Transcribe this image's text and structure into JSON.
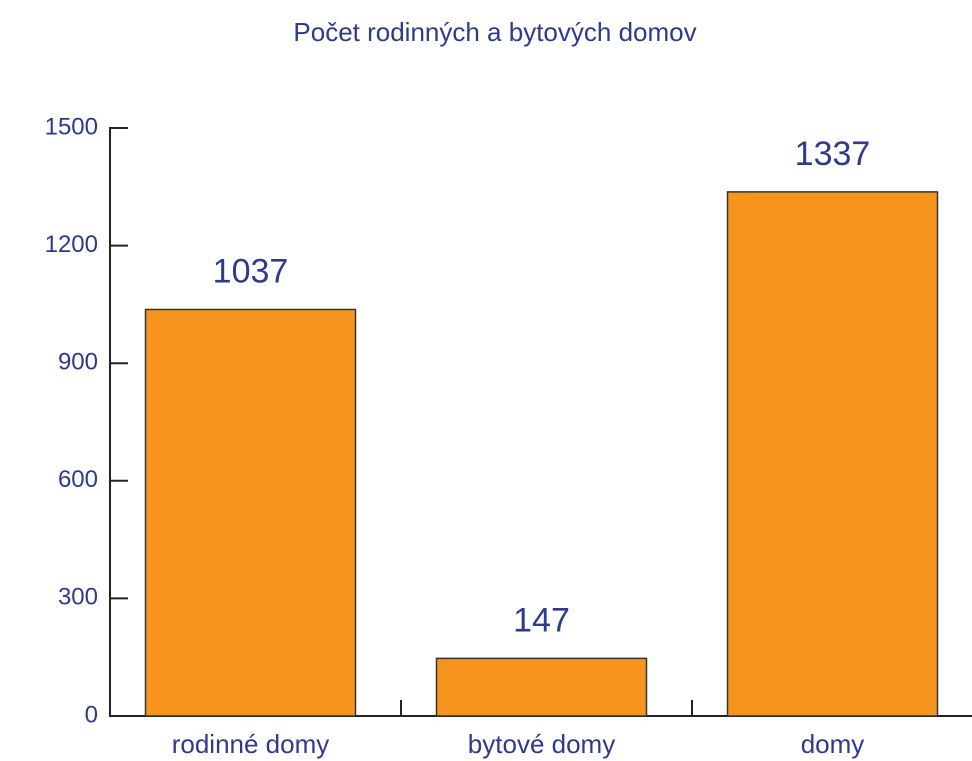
{
  "chart_data": {
    "type": "bar",
    "title": "Počet rodinných a bytových domov",
    "categories": [
      "rodinné domy",
      "bytové domy",
      "domy"
    ],
    "values": [
      1037,
      147,
      1337
    ],
    "color": "#f7941d",
    "ylim": [
      0,
      1500
    ],
    "yticks": [
      0,
      300,
      600,
      900,
      1200,
      1500
    ],
    "grid": false
  }
}
